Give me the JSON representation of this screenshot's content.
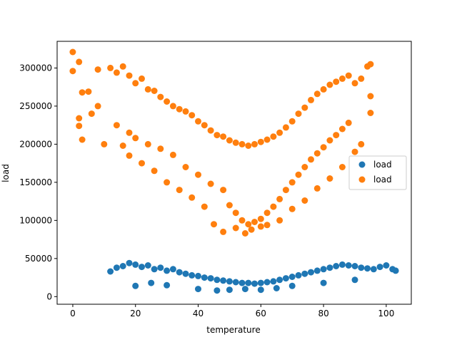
{
  "chart_data": {
    "type": "scatter",
    "title": "",
    "xlabel": "temperature",
    "ylabel": "load",
    "xlim": [
      -5,
      108
    ],
    "ylim": [
      -10000,
      335000
    ],
    "xticks": [
      0,
      20,
      40,
      60,
      80,
      100
    ],
    "yticks": [
      0,
      50000,
      100000,
      150000,
      200000,
      250000,
      300000
    ],
    "grid": false,
    "legend_position": "center-right",
    "series": [
      {
        "name": "load",
        "color": "#1f77b4",
        "points": [
          [
            12,
            33000
          ],
          [
            14,
            38000
          ],
          [
            16,
            40000
          ],
          [
            18,
            44000
          ],
          [
            20,
            42000
          ],
          [
            22,
            39000
          ],
          [
            24,
            41000
          ],
          [
            26,
            36000
          ],
          [
            28,
            38000
          ],
          [
            30,
            34000
          ],
          [
            32,
            36000
          ],
          [
            34,
            32000
          ],
          [
            36,
            30000
          ],
          [
            38,
            28000
          ],
          [
            40,
            27000
          ],
          [
            42,
            25000
          ],
          [
            44,
            24000
          ],
          [
            46,
            22000
          ],
          [
            48,
            21000
          ],
          [
            50,
            20000
          ],
          [
            52,
            19000
          ],
          [
            54,
            18000
          ],
          [
            56,
            18000
          ],
          [
            58,
            17000
          ],
          [
            60,
            18000
          ],
          [
            62,
            19000
          ],
          [
            64,
            20000
          ],
          [
            66,
            22000
          ],
          [
            68,
            24000
          ],
          [
            70,
            26000
          ],
          [
            72,
            28000
          ],
          [
            74,
            30000
          ],
          [
            76,
            32000
          ],
          [
            78,
            34000
          ],
          [
            80,
            36000
          ],
          [
            82,
            38000
          ],
          [
            84,
            40000
          ],
          [
            86,
            42000
          ],
          [
            88,
            41000
          ],
          [
            90,
            40000
          ],
          [
            92,
            38000
          ],
          [
            94,
            37000
          ],
          [
            96,
            36000
          ],
          [
            98,
            39000
          ],
          [
            100,
            41000
          ],
          [
            102,
            36000
          ],
          [
            103,
            34000
          ],
          [
            20,
            14000
          ],
          [
            25,
            18000
          ],
          [
            30,
            15000
          ],
          [
            40,
            10000
          ],
          [
            46,
            8000
          ],
          [
            50,
            9000
          ],
          [
            55,
            10000
          ],
          [
            60,
            9000
          ],
          [
            65,
            11000
          ],
          [
            70,
            14000
          ],
          [
            80,
            18000
          ],
          [
            90,
            22000
          ]
        ]
      },
      {
        "name": "load",
        "color": "#ff7f0e",
        "points": [
          [
            0,
            321000
          ],
          [
            0,
            296000
          ],
          [
            2,
            308000
          ],
          [
            2,
            234000
          ],
          [
            2,
            224000
          ],
          [
            3,
            206000
          ],
          [
            3,
            268000
          ],
          [
            5,
            269000
          ],
          [
            6,
            240000
          ],
          [
            8,
            298000
          ],
          [
            8,
            250000
          ],
          [
            10,
            200000
          ],
          [
            12,
            300000
          ],
          [
            14,
            294000
          ],
          [
            16,
            302000
          ],
          [
            18,
            290000
          ],
          [
            20,
            280000
          ],
          [
            22,
            286000
          ],
          [
            24,
            272000
          ],
          [
            26,
            270000
          ],
          [
            28,
            262000
          ],
          [
            30,
            256000
          ],
          [
            32,
            250000
          ],
          [
            34,
            246000
          ],
          [
            36,
            243000
          ],
          [
            38,
            238000
          ],
          [
            40,
            230000
          ],
          [
            42,
            225000
          ],
          [
            44,
            218000
          ],
          [
            46,
            212000
          ],
          [
            48,
            210000
          ],
          [
            50,
            205000
          ],
          [
            52,
            202000
          ],
          [
            54,
            200000
          ],
          [
            56,
            198000
          ],
          [
            58,
            200000
          ],
          [
            60,
            203000
          ],
          [
            62,
            206000
          ],
          [
            64,
            210000
          ],
          [
            66,
            215000
          ],
          [
            68,
            222000
          ],
          [
            70,
            230000
          ],
          [
            72,
            240000
          ],
          [
            74,
            248000
          ],
          [
            76,
            258000
          ],
          [
            78,
            266000
          ],
          [
            80,
            272000
          ],
          [
            82,
            278000
          ],
          [
            84,
            282000
          ],
          [
            86,
            286000
          ],
          [
            88,
            290000
          ],
          [
            90,
            280000
          ],
          [
            92,
            286000
          ],
          [
            94,
            302000
          ],
          [
            95,
            305000
          ],
          [
            95,
            263000
          ],
          [
            95,
            241000
          ],
          [
            14,
            225000
          ],
          [
            18,
            215000
          ],
          [
            20,
            208000
          ],
          [
            24,
            200000
          ],
          [
            28,
            194000
          ],
          [
            32,
            186000
          ],
          [
            36,
            170000
          ],
          [
            40,
            160000
          ],
          [
            44,
            148000
          ],
          [
            48,
            140000
          ],
          [
            50,
            120000
          ],
          [
            52,
            110000
          ],
          [
            54,
            100000
          ],
          [
            56,
            95000
          ],
          [
            58,
            98000
          ],
          [
            60,
            102000
          ],
          [
            62,
            110000
          ],
          [
            64,
            118000
          ],
          [
            66,
            128000
          ],
          [
            68,
            140000
          ],
          [
            70,
            150000
          ],
          [
            72,
            160000
          ],
          [
            74,
            170000
          ],
          [
            76,
            180000
          ],
          [
            78,
            188000
          ],
          [
            80,
            196000
          ],
          [
            82,
            205000
          ],
          [
            84,
            212000
          ],
          [
            86,
            220000
          ],
          [
            88,
            228000
          ],
          [
            48,
            85000
          ],
          [
            52,
            90000
          ],
          [
            55,
            83000
          ],
          [
            57,
            88000
          ],
          [
            45,
            95000
          ],
          [
            60,
            92000
          ],
          [
            22,
            175000
          ],
          [
            26,
            165000
          ],
          [
            30,
            150000
          ],
          [
            34,
            140000
          ],
          [
            38,
            130000
          ],
          [
            42,
            118000
          ],
          [
            62,
            94000
          ],
          [
            66,
            100000
          ],
          [
            70,
            115000
          ],
          [
            74,
            126000
          ],
          [
            78,
            142000
          ],
          [
            82,
            155000
          ],
          [
            86,
            170000
          ],
          [
            90,
            190000
          ],
          [
            92,
            200000
          ],
          [
            18,
            185000
          ],
          [
            16,
            198000
          ]
        ]
      }
    ]
  }
}
